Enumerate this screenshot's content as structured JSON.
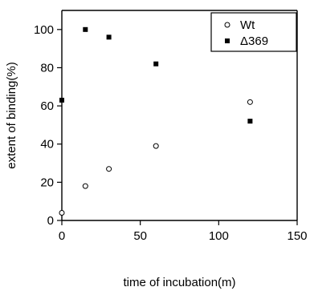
{
  "chart_data": {
    "type": "scatter",
    "title": "",
    "xlabel": "time of incubation(m)",
    "ylabel": "extent of binding(%)",
    "xlim": [
      0,
      150
    ],
    "ylim": [
      0,
      110
    ],
    "xticks": [
      0,
      50,
      100,
      150
    ],
    "yticks": [
      0,
      20,
      40,
      60,
      80,
      100
    ],
    "grid": false,
    "legend": {
      "position": "top-right"
    },
    "series": [
      {
        "name": "Wt",
        "marker": "open-circle",
        "color": "#000000",
        "x": [
          0,
          15,
          30,
          60,
          120
        ],
        "y": [
          4,
          18,
          27,
          39,
          62
        ]
      },
      {
        "name": "Δ369",
        "marker": "filled-square",
        "color": "#000000",
        "x": [
          0,
          15,
          30,
          60,
          120
        ],
        "y": [
          63,
          100,
          96,
          82,
          52
        ]
      }
    ]
  }
}
